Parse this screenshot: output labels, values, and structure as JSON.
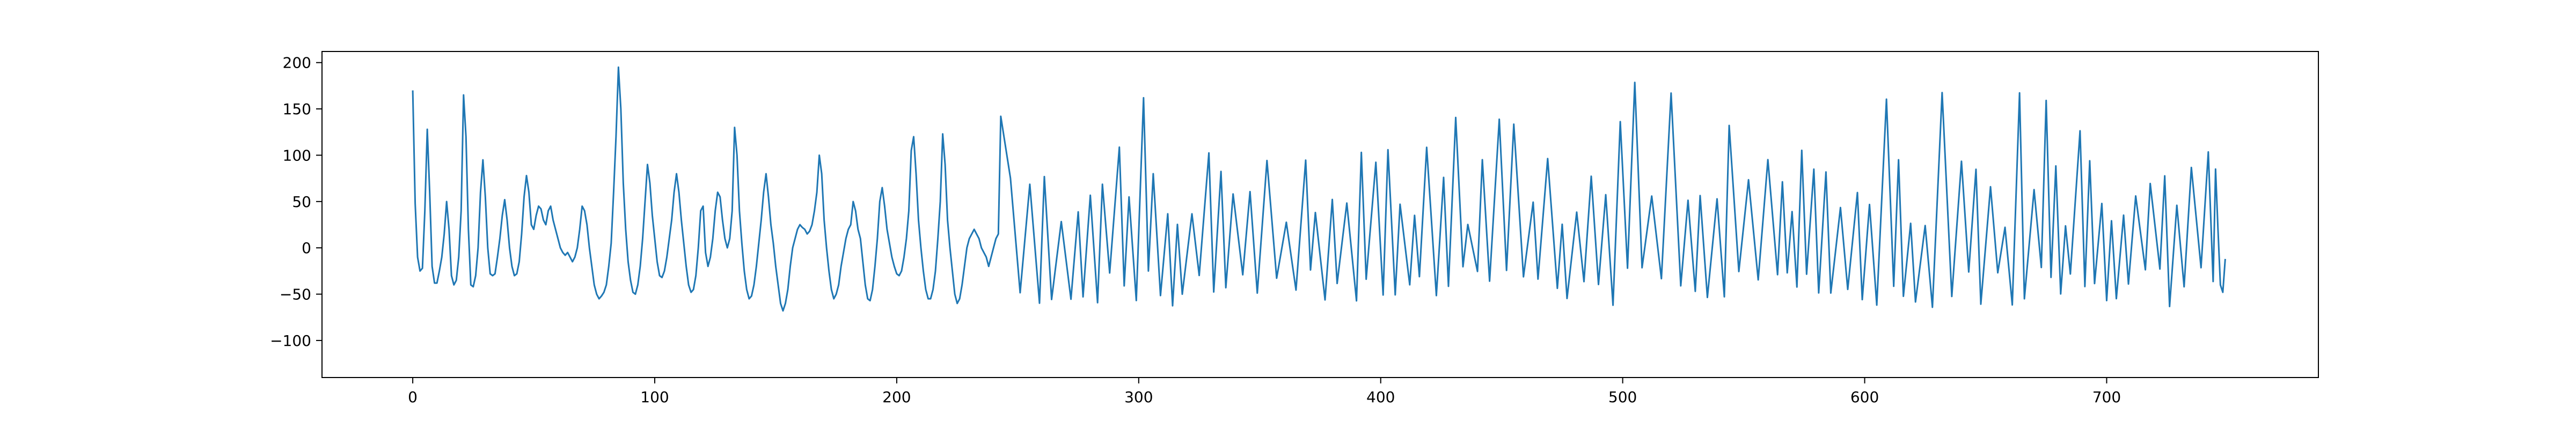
{
  "chart_data": {
    "type": "line",
    "title": "",
    "xlabel": "",
    "ylabel": "",
    "xlim": [
      -37.5,
      787.5
    ],
    "ylim": [
      -140,
      212
    ],
    "x_ticks": [
      0,
      100,
      200,
      300,
      400,
      500,
      600,
      700
    ],
    "x_tick_labels": [
      "0",
      "100",
      "200",
      "300",
      "400",
      "500",
      "600",
      "700"
    ],
    "y_ticks": [
      200,
      150,
      100,
      50,
      0,
      -50,
      -100
    ],
    "y_tick_labels": [
      "200",
      "150",
      "100",
      "50",
      "0",
      "−50",
      "−100"
    ],
    "grid": false,
    "legend": "none",
    "line_color": "#1f77b4",
    "x_start": 0,
    "x_step": 1,
    "series": [
      {
        "values": [
          170,
          48,
          -10,
          -25,
          -22,
          40,
          128,
          60,
          -20,
          -38,
          -38,
          -25,
          -10,
          15,
          50,
          20,
          -30,
          -40,
          -35,
          -10,
          40,
          165,
          120,
          20,
          -40,
          -42,
          -30,
          0,
          60,
          95,
          55,
          0,
          -28,
          -30,
          -28,
          -10,
          10,
          35,
          52,
          30,
          0,
          -20,
          -30,
          -28,
          -15,
          15,
          55,
          78,
          60,
          25,
          20,
          35,
          45,
          42,
          30,
          25,
          40,
          45,
          30,
          20,
          10,
          0,
          -5,
          -8,
          -5,
          -10,
          -15,
          -10,
          0,
          20,
          45,
          40,
          25,
          0,
          -20,
          -40,
          -50,
          -55,
          -52,
          -48,
          -40,
          -20,
          5,
          60,
          120,
          195,
          150,
          70,
          20,
          -15,
          -35,
          -48,
          -50,
          -40,
          -20,
          10,
          50,
          90,
          70,
          35,
          10,
          -15,
          -30,
          -32,
          -25,
          -10,
          10,
          30,
          60,
          80,
          60,
          30,
          5,
          -20,
          -40,
          -48,
          -45,
          -30,
          0,
          40,
          45,
          -5,
          -20,
          -10,
          10,
          40,
          60,
          55,
          30,
          10,
          0,
          10,
          40,
          130,
          100,
          40,
          5,
          -25,
          -45,
          -55,
          -52,
          -40,
          -20,
          5,
          30,
          60,
          80,
          55,
          25,
          5,
          -20,
          -40,
          -60,
          -68,
          -60,
          -45,
          -20,
          0,
          10,
          20,
          25,
          22,
          20,
          15,
          18,
          25,
          40,
          60,
          100,
          80,
          30,
          0,
          -25,
          -45,
          -55,
          -50,
          -40,
          -20,
          -5,
          10,
          20,
          25,
          50,
          40,
          20,
          10,
          -15,
          -40,
          -55,
          -57,
          -45,
          -20,
          10,
          50,
          65,
          45,
          20,
          5,
          -10,
          -20,
          -28,
          -30,
          -25,
          -10,
          10,
          40,
          105,
          120,
          80,
          30,
          0,
          -25,
          -45,
          -55,
          -55,
          -45,
          -25,
          10,
          50,
          123,
          90,
          30,
          0,
          -25,
          -50,
          -60,
          -55,
          -40,
          -20,
          0,
          10,
          15,
          20,
          15,
          10,
          0,
          -5,
          -10,
          -20,
          -10,
          0,
          10,
          15,
          142
        ],
        "values_cont": []
      }
    ]
  }
}
